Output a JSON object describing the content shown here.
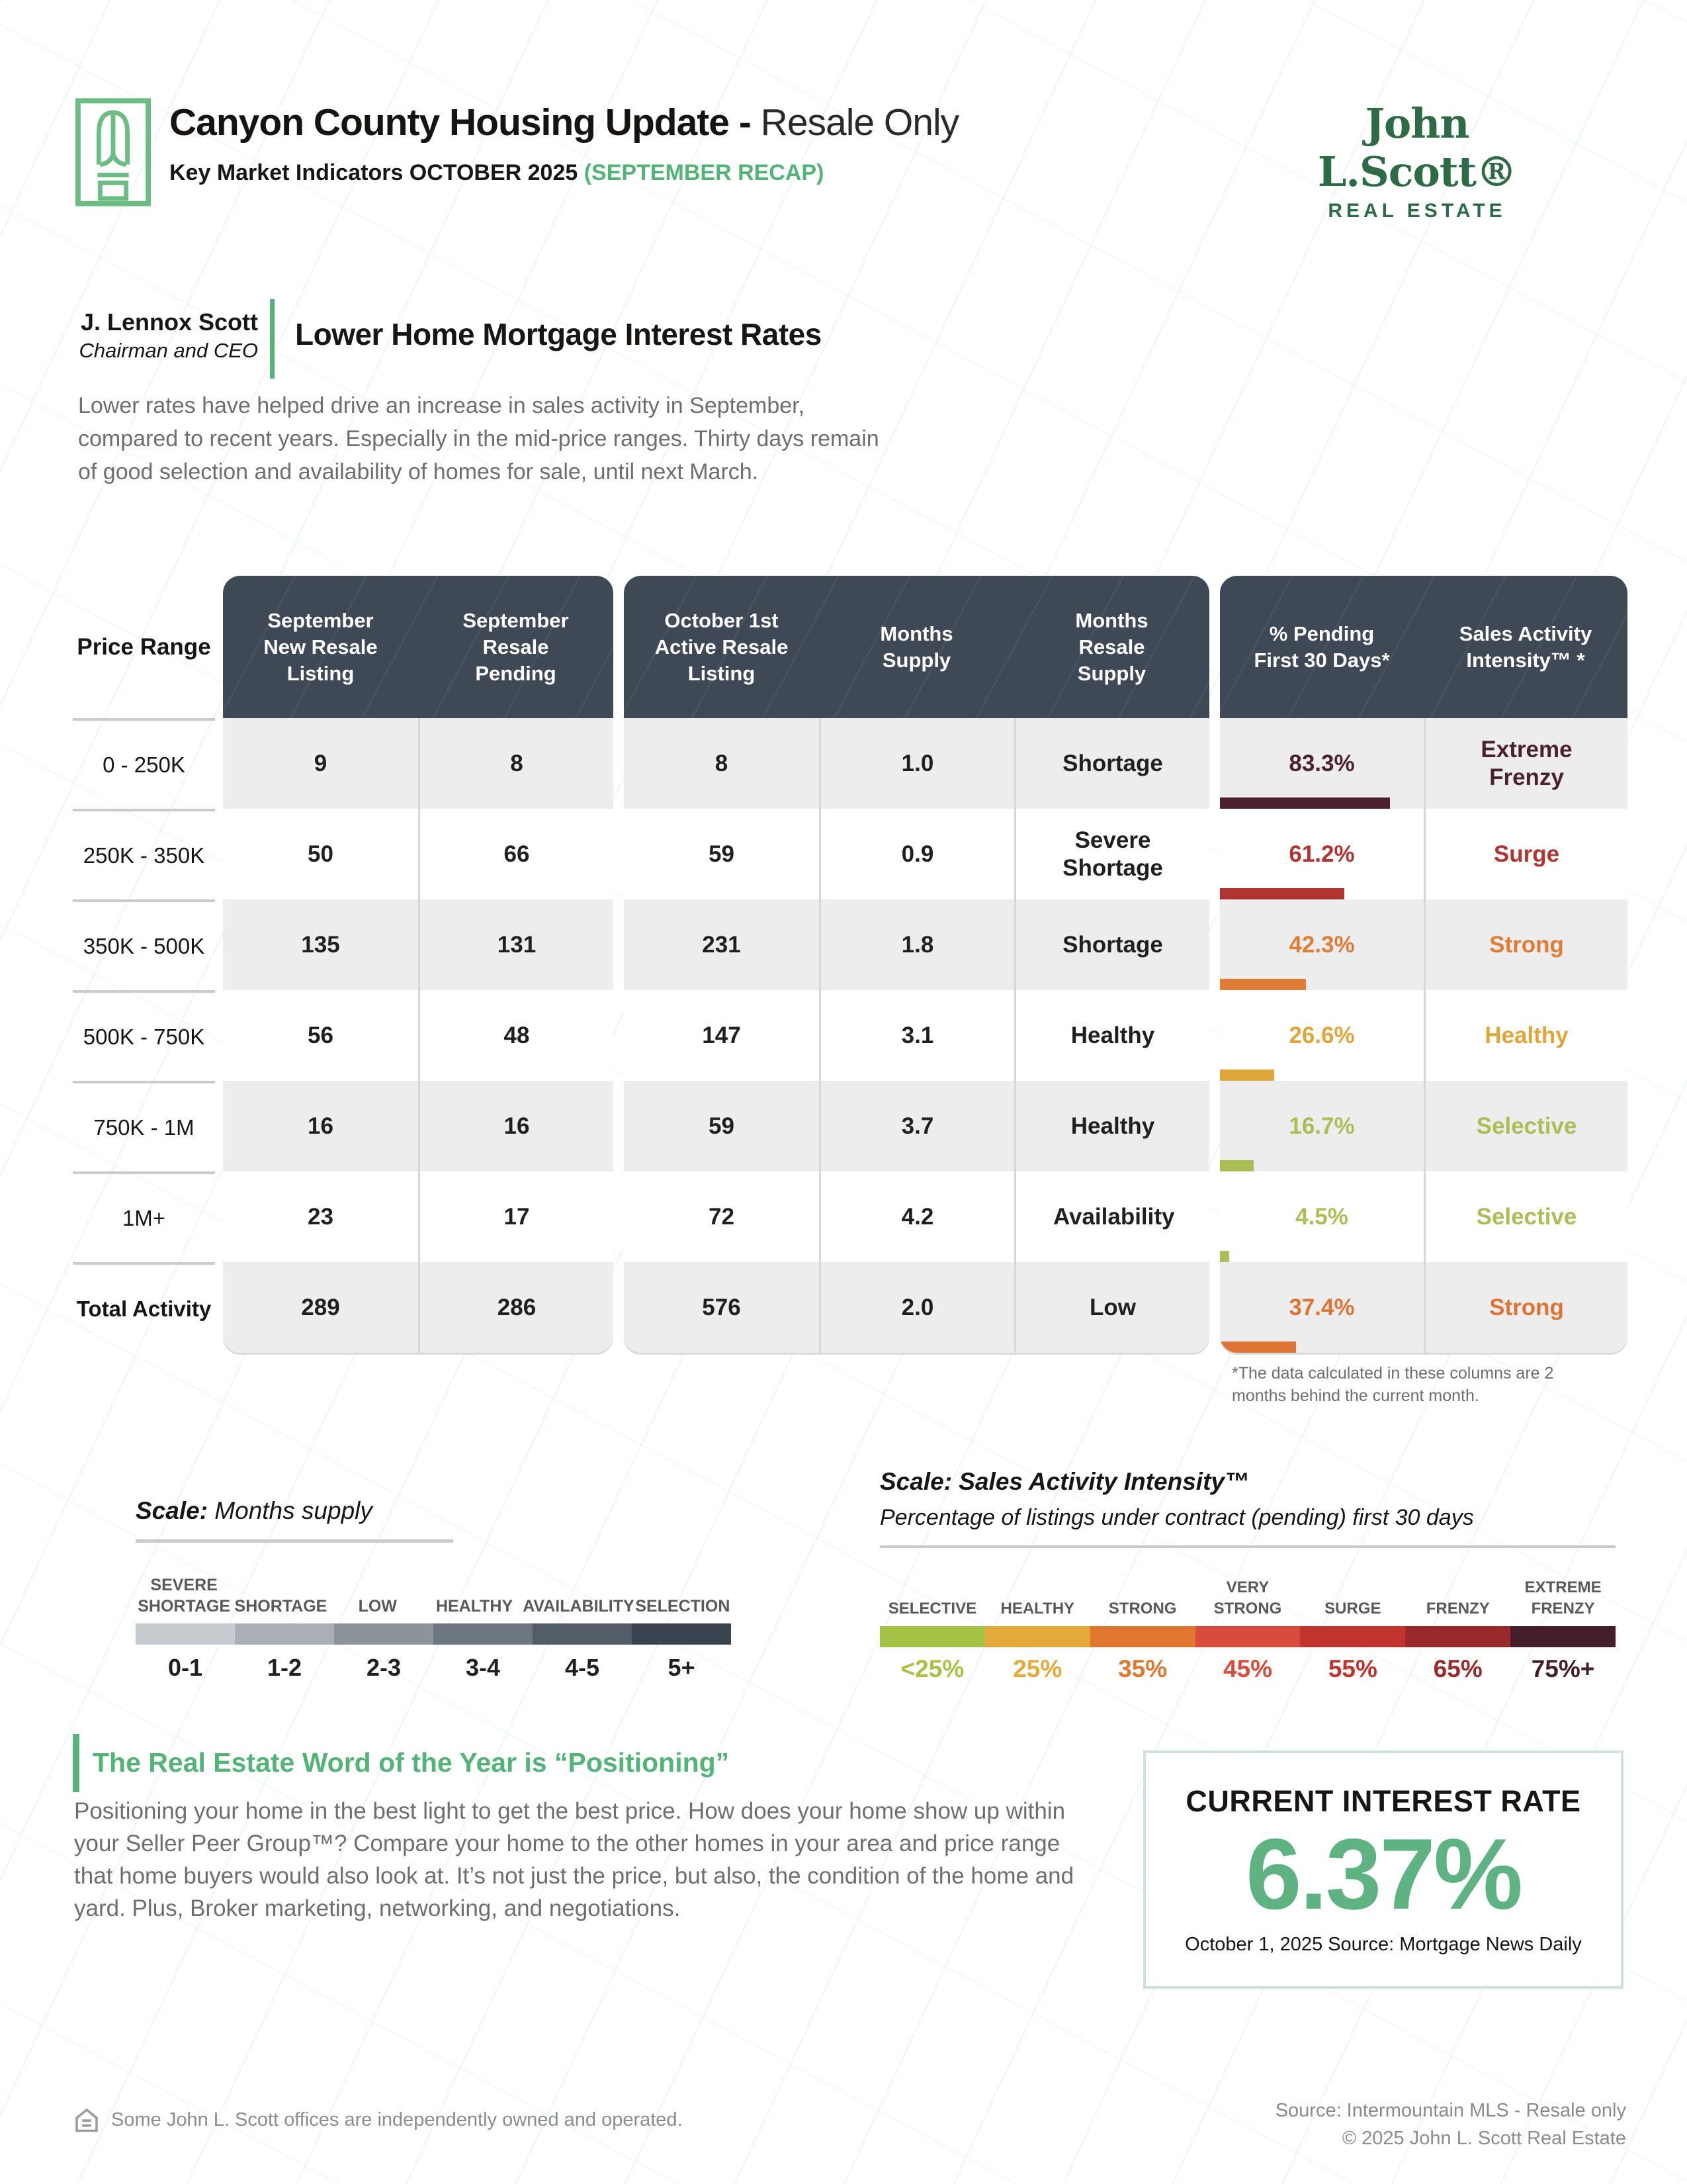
{
  "header": {
    "title_bold": "Canyon County Housing Update -",
    "title_light": " Resale Only",
    "subtitle_black": "Key Market Indicators OCTOBER 2025 ",
    "subtitle_green": "(SEPTEMBER RECAP)",
    "brand_name": "John L.Scott®",
    "brand_sub": "REAL ESTATE",
    "brand_color": "#2c6b45",
    "accent_green": "#53b478"
  },
  "intro": {
    "author_name": "J. Lennox Scott",
    "author_title": "Chairman and CEO",
    "heading": "Lower Home Mortgage Interest Rates",
    "paragraph": "Lower rates have helped drive an increase in sales activity in September, compared to recent years. Especially in the mid-price ranges. Thirty days remain of good selection and availability of homes for sale, until next March."
  },
  "table": {
    "price_header": "Price Range",
    "group1_headers": [
      "September New Resale Listing",
      "September Resale Pending"
    ],
    "group2_headers": [
      "October 1st Active Resale Listing",
      "Months Supply",
      "Months Resale Supply"
    ],
    "group3_headers": [
      "% Pending First 30 Days*",
      "Sales Activity Intensity™ *"
    ],
    "header_bg": "#3e4955",
    "rows": [
      {
        "price_range": "0 - 250K",
        "new_listing": "9",
        "resale_pending": "8",
        "active_listing": "8",
        "months_supply": "1.0",
        "supply_label": "Shortage",
        "pct_pending": "83.3%",
        "pct_value": 83.3,
        "intensity": "Extreme Frenzy",
        "color": "#4b2130"
      },
      {
        "price_range": "250K - 350K",
        "new_listing": "50",
        "resale_pending": "66",
        "active_listing": "59",
        "months_supply": "0.9",
        "supply_label": "Severe Shortage",
        "pct_pending": "61.2%",
        "pct_value": 61.2,
        "intensity": "Surge",
        "color": "#b23431"
      },
      {
        "price_range": "350K - 500K",
        "new_listing": "135",
        "resale_pending": "131",
        "active_listing": "231",
        "months_supply": "1.8",
        "supply_label": "Shortage",
        "pct_pending": "42.3%",
        "pct_value": 42.3,
        "intensity": "Strong",
        "color": "#df7c35"
      },
      {
        "price_range": "500K - 750K",
        "new_listing": "56",
        "resale_pending": "48",
        "active_listing": "147",
        "months_supply": "3.1",
        "supply_label": "Healthy",
        "pct_pending": "26.6%",
        "pct_value": 26.6,
        "intensity": "Healthy",
        "color": "#dfa639"
      },
      {
        "price_range": "750K - 1M",
        "new_listing": "16",
        "resale_pending": "16",
        "active_listing": "59",
        "months_supply": "3.7",
        "supply_label": "Healthy",
        "pct_pending": "16.7%",
        "pct_value": 16.7,
        "intensity": "Selective",
        "color": "#a9bf55"
      },
      {
        "price_range": "1M+",
        "new_listing": "23",
        "resale_pending": "17",
        "active_listing": "72",
        "months_supply": "4.2",
        "supply_label": "Availability",
        "pct_pending": "4.5%",
        "pct_value": 4.5,
        "intensity": "Selective",
        "color": "#a9bf55"
      },
      {
        "price_range": "Total Activity",
        "new_listing": "289",
        "resale_pending": "286",
        "active_listing": "576",
        "months_supply": "2.0",
        "supply_label": "Low",
        "pct_pending": "37.4%",
        "pct_value": 37.4,
        "intensity": "Strong",
        "color": "#dd7434"
      }
    ],
    "footnote": "*The data calculated in these columns are 2 months behind the current month."
  },
  "supply_scale": {
    "title_bold": "Scale:",
    "title_rest": " Months supply",
    "segments": [
      {
        "label": "SEVERE SHORTAGE",
        "range": "0-1",
        "color": "#c7cbcf"
      },
      {
        "label": "SHORTAGE",
        "range": "1-2",
        "color": "#a9afb5"
      },
      {
        "label": "LOW",
        "range": "2-3",
        "color": "#8b939b"
      },
      {
        "label": "HEALTHY",
        "range": "3-4",
        "color": "#6d7781"
      },
      {
        "label": "AVAILABILITY",
        "range": "4-5",
        "color": "#525d68"
      },
      {
        "label": "SELECTION",
        "range": "5+",
        "color": "#3a4450"
      }
    ]
  },
  "intensity_scale": {
    "title": "Scale: Sales Activity Intensity™",
    "subtitle": "Percentage of listings under contract (pending) first 30 days",
    "segments": [
      {
        "label": "SELECTIVE",
        "range": "<25%",
        "color": "#a4c345"
      },
      {
        "label": "HEALTHY",
        "range": "25%",
        "color": "#e5a93a"
      },
      {
        "label": "STRONG",
        "range": "35%",
        "color": "#e0772f"
      },
      {
        "label": "VERY STRONG",
        "range": "45%",
        "color": "#d94b3a"
      },
      {
        "label": "SURGE",
        "range": "55%",
        "color": "#c0332f"
      },
      {
        "label": "FRENZY",
        "range": "65%",
        "color": "#99292a"
      },
      {
        "label": "EXTREME FRENZY",
        "range": "75%+",
        "color": "#441f2b"
      }
    ]
  },
  "word_of_year": {
    "heading": "The Real Estate Word of the Year is “Positioning”",
    "paragraph": "Positioning your home in the best light to get the best price. How does your home show up within your Seller Peer Group™? Compare your home to the other homes in your area and price range that home buyers would also look at. It’s not just the price, but also, the condition of the home and yard. Plus, Broker marketing, networking, and negotiations."
  },
  "interest_rate": {
    "title": "CURRENT INTEREST RATE",
    "value": "6.37%",
    "source": "October 1, 2025 Source: Mortgage News Daily",
    "value_color": "#5fb382"
  },
  "footer": {
    "left": "Some John L. Scott offices are independently owned and operated.",
    "right_line1": "Source: Intermountain MLS - Resale only",
    "right_line2": "© 2025 John L. Scott Real Estate"
  }
}
